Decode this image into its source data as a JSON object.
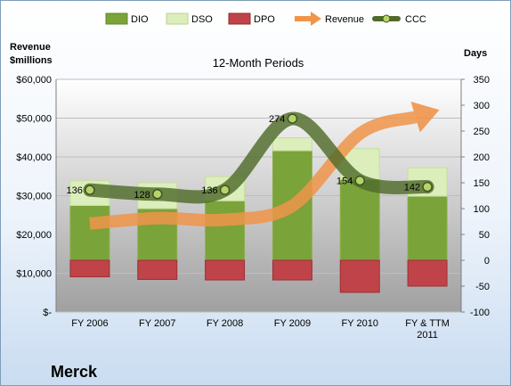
{
  "chart_data": {
    "type": "bar",
    "title": "12-Month Periods",
    "company": "Merck",
    "left_axis_label": [
      "Revenue",
      "$millions"
    ],
    "right_axis_label": "Days",
    "categories": [
      [
        "FY 2006"
      ],
      [
        "FY 2007"
      ],
      [
        "FY 2008"
      ],
      [
        "FY 2009"
      ],
      [
        "FY 2010"
      ],
      [
        "FY & TTM",
        "2011"
      ]
    ],
    "left_ticks": [
      "$-",
      "$10,000",
      "$20,000",
      "$30,000",
      "$40,000",
      "$50,000",
      "$60,000"
    ],
    "right_ticks": [
      "-100",
      "-50",
      "0",
      "50",
      "100",
      "150",
      "200",
      "250",
      "300",
      "350"
    ],
    "ylim_left": [
      0,
      60000
    ],
    "ylim_right": [
      -100,
      350
    ],
    "legend": [
      "DIO",
      "DSO",
      "DPO",
      "Revenue",
      "CCC"
    ],
    "colors": {
      "dio": "#7aa33a",
      "dso": "#dbeebc",
      "dpo": "#c0434a",
      "revenue": "#f0944a",
      "ccc": "#4f6b2a",
      "plot_top": "#ffffff",
      "plot_bottom": "#a0a0a0"
    },
    "series": [
      {
        "name": "DIO",
        "axis": "days",
        "values": [
          106,
          100,
          115,
          212,
          156,
          124
        ]
      },
      {
        "name": "DSO",
        "axis": "days",
        "values": [
          48,
          50,
          47,
          25,
          60,
          55
        ]
      },
      {
        "name": "DPO",
        "axis": "days",
        "values": [
          -32,
          -37,
          -38,
          -38,
          -62,
          -50
        ]
      },
      {
        "name": "Revenue",
        "axis": "$millions",
        "values": [
          22800,
          24200,
          23800,
          27400,
          46000,
          51200
        ]
      },
      {
        "name": "CCC",
        "axis": "days",
        "values": [
          136,
          128,
          136,
          274,
          154,
          142
        ]
      }
    ],
    "ccc_labels": [
      "136",
      "128",
      "136",
      "274",
      "154",
      "142"
    ],
    "grid": true,
    "legend_position": "top"
  }
}
